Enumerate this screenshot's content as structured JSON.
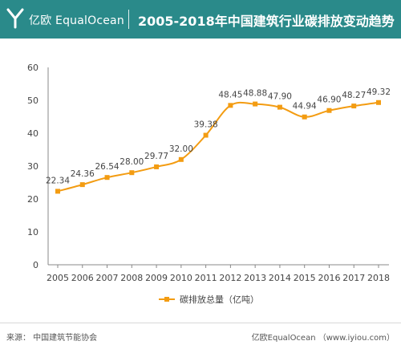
{
  "header": {
    "brand": "亿欧 EqualOcean",
    "title": "2005-2018年中国建筑行业碳排放变动趋势",
    "background": "#2a8a8a"
  },
  "chart_data": {
    "type": "line",
    "x": [
      "2005",
      "2006",
      "2007",
      "2008",
      "2009",
      "2010",
      "2011",
      "2012",
      "2013",
      "2014",
      "2015",
      "2016",
      "2017",
      "2018"
    ],
    "series": [
      {
        "name": "碳排放总量（亿吨）",
        "values": [
          22.34,
          24.36,
          26.54,
          28.0,
          29.77,
          32.0,
          39.38,
          48.45,
          48.88,
          47.9,
          44.94,
          46.9,
          48.27,
          49.32
        ],
        "labels": [
          "22.34",
          "24.36",
          "26.54",
          "28.00",
          "29.77",
          "32.00",
          "39.38",
          "48.45",
          "48.88",
          "47.90",
          "44.94",
          "46.90",
          "48.27",
          "49.32"
        ],
        "color": "#f39c12"
      }
    ],
    "yticks": [
      "0",
      "10",
      "20",
      "30",
      "40",
      "50",
      "60"
    ],
    "ylim": [
      0,
      60
    ],
    "grid": false,
    "legend_position": "bottom"
  },
  "footer": {
    "source": "来源：  中国建筑节能协会",
    "credit": "亿欧EqualOcean （www.iyiou.com）"
  }
}
